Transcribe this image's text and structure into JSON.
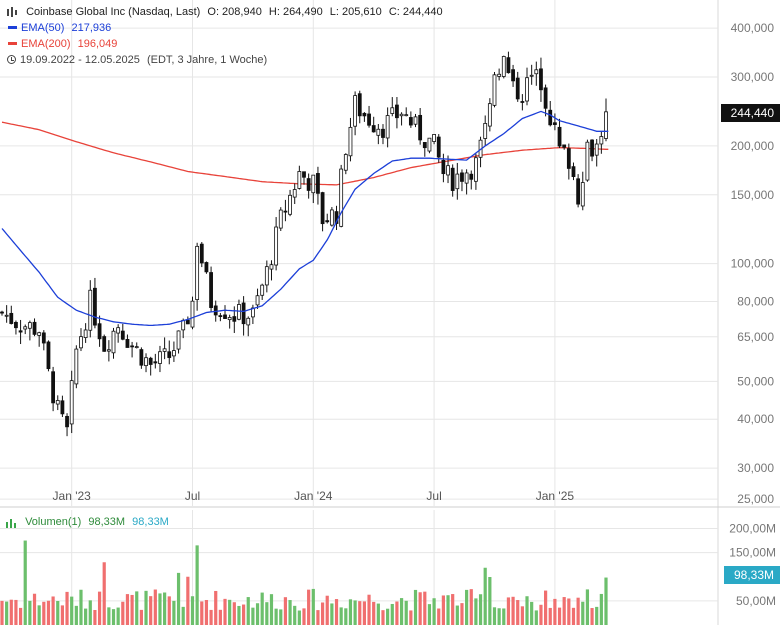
{
  "header": {
    "symbol_line": "Coinbase Global Inc (Nasdaq, Last)",
    "open": "O: 208,940",
    "high": "H: 264,490",
    "low": "L: 205,610",
    "close": "C: 244,440",
    "ema50_label": "EMA(50)",
    "ema50_value": "217,936",
    "ema200_label": "EMA(200)",
    "ema200_value": "196,049",
    "range": "19.09.2022 - 12.05.2025",
    "range_note": "(EDT, 3 Jahre, 1 Woche)",
    "icon": "candlestick-icon"
  },
  "volume_header": {
    "label": "Volumen(1)",
    "value_a": "98,33M",
    "value_b": "98,33M",
    "icon": "volume-bars-icon"
  },
  "price_tag": "244,440",
  "volume_tag": "98,33M",
  "colors": {
    "ema50": "#1c3fd8",
    "ema200": "#e8433a",
    "up_volume": "#6cbf6c",
    "down_volume": "#f06f6f",
    "tag": "#111111",
    "volume_tag": "#2aa9c6",
    "grid": "#e6e6e6"
  },
  "chart_data": {
    "type": "candlestick",
    "scale": "log",
    "ylim": [
      24000,
      440000
    ],
    "y_ticks": [
      {
        "v": 400000,
        "label": "400,000"
      },
      {
        "v": 300000,
        "label": "300,000"
      },
      {
        "v": 200000,
        "label": "200,000"
      },
      {
        "v": 150000,
        "label": "150,000"
      },
      {
        "v": 100000,
        "label": "100,000"
      },
      {
        "v": 80000,
        "label": "80,000"
      },
      {
        "v": 65000,
        "label": "65,000"
      },
      {
        "v": 50000,
        "label": "50,000"
      },
      {
        "v": 40000,
        "label": "40,000"
      },
      {
        "v": 30000,
        "label": "30,000"
      },
      {
        "v": 25000,
        "label": "25,000"
      }
    ],
    "x_ticks": [
      {
        "week": 15,
        "label": "Jan '23"
      },
      {
        "week": 41,
        "label": "Jul"
      },
      {
        "week": 67,
        "label": "Jan '24"
      },
      {
        "week": 93,
        "label": "Jul"
      },
      {
        "week": 119,
        "label": "Jan '25"
      }
    ],
    "anchors": [
      [
        0,
        75000
      ],
      [
        4,
        70000
      ],
      [
        8,
        68000
      ],
      [
        10,
        52000
      ],
      [
        12,
        42000
      ],
      [
        14,
        37000
      ],
      [
        16,
        60000
      ],
      [
        19,
        80000
      ],
      [
        22,
        62000
      ],
      [
        25,
        70000
      ],
      [
        28,
        62000
      ],
      [
        32,
        55000
      ],
      [
        36,
        58000
      ],
      [
        39,
        67000
      ],
      [
        41,
        80000
      ],
      [
        42,
        115000
      ],
      [
        45,
        80000
      ],
      [
        50,
        74000
      ],
      [
        54,
        74000
      ],
      [
        57,
        95000
      ],
      [
        60,
        130000
      ],
      [
        64,
        170000
      ],
      [
        67,
        160000
      ],
      [
        69,
        130000
      ],
      [
        72,
        135000
      ],
      [
        74,
        200000
      ],
      [
        76,
        255000
      ],
      [
        78,
        240000
      ],
      [
        80,
        230000
      ],
      [
        82,
        225000
      ],
      [
        84,
        235000
      ],
      [
        86,
        245000
      ],
      [
        88,
        230000
      ],
      [
        90,
        215000
      ],
      [
        93,
        200000
      ],
      [
        95,
        170000
      ],
      [
        97,
        165000
      ],
      [
        99,
        170000
      ],
      [
        102,
        180000
      ],
      [
        105,
        240000
      ],
      [
        106,
        310000
      ],
      [
        108,
        330000
      ],
      [
        110,
        280000
      ],
      [
        112,
        275000
      ],
      [
        114,
        300000
      ],
      [
        116,
        295000
      ],
      [
        118,
        240000
      ],
      [
        120,
        195000
      ],
      [
        122,
        185000
      ],
      [
        124,
        150000
      ],
      [
        126,
        200000
      ],
      [
        128,
        200000
      ],
      [
        130,
        244440
      ]
    ],
    "ema50": [
      [
        0,
        123000
      ],
      [
        4,
        108000
      ],
      [
        8,
        95000
      ],
      [
        12,
        82000
      ],
      [
        16,
        76000
      ],
      [
        20,
        73000
      ],
      [
        24,
        71000
      ],
      [
        28,
        70000
      ],
      [
        32,
        69500
      ],
      [
        36,
        70000
      ],
      [
        40,
        72000
      ],
      [
        44,
        75000
      ],
      [
        48,
        76000
      ],
      [
        52,
        75500
      ],
      [
        56,
        78000
      ],
      [
        60,
        86000
      ],
      [
        64,
        97000
      ],
      [
        67,
        102000
      ],
      [
        70,
        115000
      ],
      [
        73,
        135000
      ],
      [
        76,
        155000
      ],
      [
        80,
        170000
      ],
      [
        84,
        183000
      ],
      [
        88,
        186000
      ],
      [
        92,
        186000
      ],
      [
        96,
        185000
      ],
      [
        100,
        184000
      ],
      [
        104,
        200000
      ],
      [
        108,
        215000
      ],
      [
        112,
        235000
      ],
      [
        116,
        245000
      ],
      [
        118,
        240000
      ],
      [
        120,
        232000
      ],
      [
        124,
        225000
      ],
      [
        128,
        218000
      ],
      [
        130,
        217936
      ]
    ],
    "ema200": [
      [
        0,
        230000
      ],
      [
        8,
        220000
      ],
      [
        16,
        205000
      ],
      [
        24,
        192000
      ],
      [
        32,
        182000
      ],
      [
        40,
        172000
      ],
      [
        48,
        167000
      ],
      [
        56,
        162000
      ],
      [
        64,
        160000
      ],
      [
        72,
        159000
      ],
      [
        80,
        166000
      ],
      [
        88,
        176000
      ],
      [
        96,
        183000
      ],
      [
        104,
        190000
      ],
      [
        112,
        195000
      ],
      [
        120,
        198000
      ],
      [
        126,
        197000
      ],
      [
        130,
        196049
      ]
    ],
    "volume": {
      "ylim": [
        0,
        230000000
      ],
      "y_ticks": [
        {
          "v": 200000000,
          "label": "200,00M"
        },
        {
          "v": 150000000,
          "label": "150,00M"
        },
        {
          "v": 50000000,
          "label": "50,00M"
        }
      ],
      "last": 98330000
    }
  }
}
